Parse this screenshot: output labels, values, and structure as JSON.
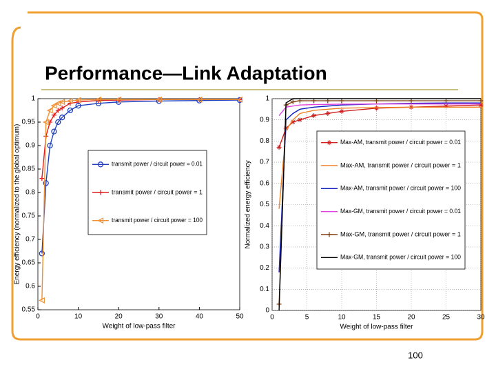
{
  "slide": {
    "title": "Performance—Link Adaptation",
    "page_number": "100"
  },
  "chart_data": [
    {
      "type": "line",
      "xlabel": "Weight of low-pass filter",
      "ylabel": "Energy efficiency (normalized to the global optimum)",
      "x": [
        1,
        2,
        3,
        4,
        5,
        6,
        8,
        10,
        15,
        20,
        30,
        40,
        50
      ],
      "xlim": [
        0,
        50
      ],
      "xticks": [
        0,
        10,
        20,
        30,
        40,
        50
      ],
      "ylim": [
        0.55,
        1
      ],
      "yticks": [
        0.55,
        0.6,
        0.65,
        0.7,
        0.75,
        0.8,
        0.85,
        0.9,
        0.95,
        1
      ],
      "grid": false,
      "series": [
        {
          "name": "transmit power / circuit power = 0.01",
          "color": "#1f3fbf",
          "marker": "circle",
          "values": [
            0.67,
            0.82,
            0.9,
            0.93,
            0.95,
            0.96,
            0.975,
            0.985,
            0.99,
            0.993,
            0.995,
            0.996,
            0.997
          ]
        },
        {
          "name": "transmit power / circuit power = 1",
          "color": "#e02020",
          "marker": "plus",
          "values": [
            0.83,
            0.92,
            0.95,
            0.965,
            0.975,
            0.98,
            0.99,
            0.993,
            0.996,
            0.997,
            0.998,
            0.998,
            0.998
          ]
        },
        {
          "name": "transmit power / circuit power = 100",
          "color": "#f09030",
          "marker": "triangle",
          "values": [
            0.57,
            0.95,
            0.975,
            0.985,
            0.99,
            0.993,
            0.995,
            0.997,
            0.998,
            0.998,
            0.998,
            0.998,
            0.998
          ]
        }
      ]
    },
    {
      "type": "line",
      "xlabel": "Weight of low-pass filter",
      "ylabel": "Normalized energy efficiency",
      "x": [
        1,
        2,
        3,
        4,
        6,
        8,
        10,
        15,
        20,
        25,
        30
      ],
      "xlim": [
        0,
        30
      ],
      "xticks": [
        0,
        5,
        10,
        15,
        20,
        25,
        30
      ],
      "ylim": [
        0,
        1
      ],
      "yticks": [
        0,
        0.1,
        0.2,
        0.3,
        0.4,
        0.5,
        0.6,
        0.7,
        0.8,
        0.9,
        1
      ],
      "grid": true,
      "series": [
        {
          "name": "Max-AM, transmit power / circuit power = 0.01",
          "color": "#d02020",
          "marker": "star",
          "values": [
            0.77,
            0.86,
            0.89,
            0.9,
            0.92,
            0.93,
            0.94,
            0.955,
            0.96,
            0.965,
            0.97
          ]
        },
        {
          "name": "Max-AM, transmit power / circuit power = 1",
          "color": "#f08020",
          "marker": "none",
          "values": [
            0.48,
            0.85,
            0.9,
            0.93,
            0.945,
            0.95,
            0.955,
            0.958,
            0.96,
            0.96,
            0.96
          ]
        },
        {
          "name": "Max-AM, transmit power / circuit power = 100",
          "color": "#1020c0",
          "marker": "none",
          "values": [
            0.18,
            0.9,
            0.93,
            0.95,
            0.96,
            0.965,
            0.97,
            0.975,
            0.978,
            0.98,
            0.98
          ]
        },
        {
          "name": "Max-GM, transmit power / circuit power = 0.01",
          "color": "#e040e0",
          "marker": "none",
          "values": [
            0.92,
            0.96,
            0.965,
            0.97,
            0.972,
            0.973,
            0.974,
            0.975,
            0.975,
            0.975,
            0.975
          ]
        },
        {
          "name": "Max-GM, transmit power / circuit power = 1",
          "color": "#804010",
          "marker": "plus",
          "values": [
            0.03,
            0.97,
            0.985,
            0.99,
            0.99,
            0.99,
            0.99,
            0.99,
            0.99,
            0.99,
            0.99
          ]
        },
        {
          "name": "Max-GM, transmit power / circuit power = 100",
          "color": "#000000",
          "marker": "none",
          "values": [
            0,
            0.98,
            1,
            1,
            1,
            1,
            1,
            1,
            1,
            1,
            1
          ]
        }
      ]
    }
  ]
}
